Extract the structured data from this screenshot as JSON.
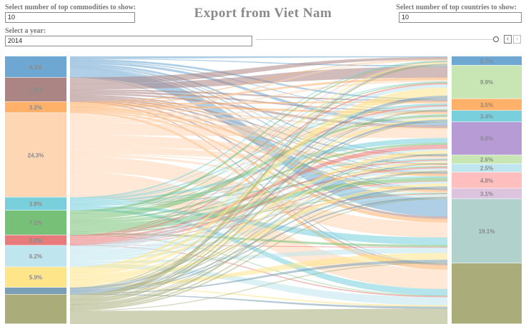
{
  "controls": {
    "commodities_label": "Select number of top commodities to show:",
    "commodities_value": "10",
    "countries_label": "Select number of top countries to show:",
    "countries_value": "10",
    "year_label": "Select a year:",
    "year_value": "2014",
    "slider_fraction": 1.0,
    "prev_glyph": "‹",
    "next_glyph": "›"
  },
  "title": "Export from Viet Nam",
  "chart_data": {
    "type": "sankey",
    "year": "2014",
    "sources": [
      {
        "label": "6.1%",
        "share": 6.1,
        "color": "#6ea7d2"
      },
      {
        "label": "7.0%",
        "share": 7.0,
        "color": "#ab8583"
      },
      {
        "label": "3.2%",
        "share": 3.2,
        "color": "#ffb069"
      },
      {
        "label": "24.3%",
        "share": 24.3,
        "color": "#ffd6b3"
      },
      {
        "label": "3.8%",
        "share": 3.8,
        "color": "#79d0dc"
      },
      {
        "label": "7.1%",
        "share": 7.1,
        "color": "#76c177"
      },
      {
        "label": "3.0%",
        "share": 3.0,
        "color": "#e77b7c"
      },
      {
        "label": "6.2%",
        "share": 6.2,
        "color": "#bfe5ee"
      },
      {
        "label": "5.9%",
        "share": 5.9,
        "color": "#ffe58a"
      },
      {
        "label": "",
        "share": 2.0,
        "color": "#7a9eb3"
      },
      {
        "label": "",
        "share": 8.5,
        "color": "#aaad7a"
      }
    ],
    "targets": [
      {
        "label": "2.7%",
        "share": 2.7,
        "color": "#6ea7d2"
      },
      {
        "label": "9.9%",
        "share": 9.9,
        "color": "#c7e6b4"
      },
      {
        "label": "3.5%",
        "share": 3.5,
        "color": "#ffb069"
      },
      {
        "label": "3.4%",
        "share": 3.4,
        "color": "#79d0dc"
      },
      {
        "label": "9.8%",
        "share": 9.8,
        "color": "#b69bd5"
      },
      {
        "label": "2.6%",
        "share": 2.6,
        "color": "#c7e6b4"
      },
      {
        "label": "2.5%",
        "share": 2.5,
        "color": "#bfe5ee"
      },
      {
        "label": "4.8%",
        "share": 4.8,
        "color": "#ffbfbf"
      },
      {
        "label": "3.1%",
        "share": 3.1,
        "color": "#dcc4de"
      },
      {
        "label": "19.1%",
        "share": 19.1,
        "color": "#b0d1cc"
      },
      {
        "label": "",
        "share": 18.0,
        "color": "#aaad7a"
      }
    ]
  }
}
